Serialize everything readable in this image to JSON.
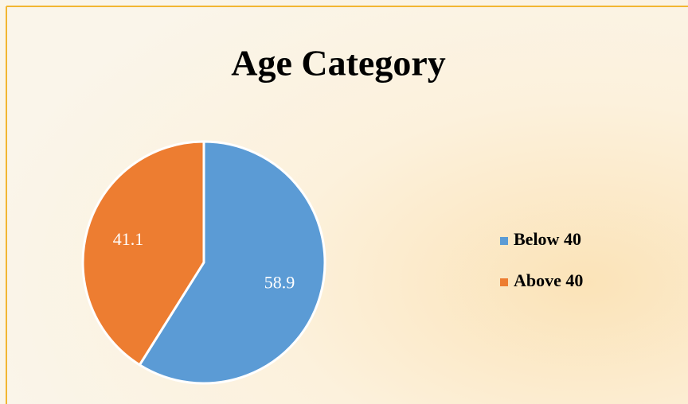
{
  "chart_data": {
    "type": "pie",
    "title": "Age Category",
    "categories": [
      "Below 40",
      "Above 40"
    ],
    "values": [
      58.9,
      41.1
    ],
    "colors": [
      "#5b9bd5",
      "#ed7d31"
    ],
    "legend": "right"
  }
}
